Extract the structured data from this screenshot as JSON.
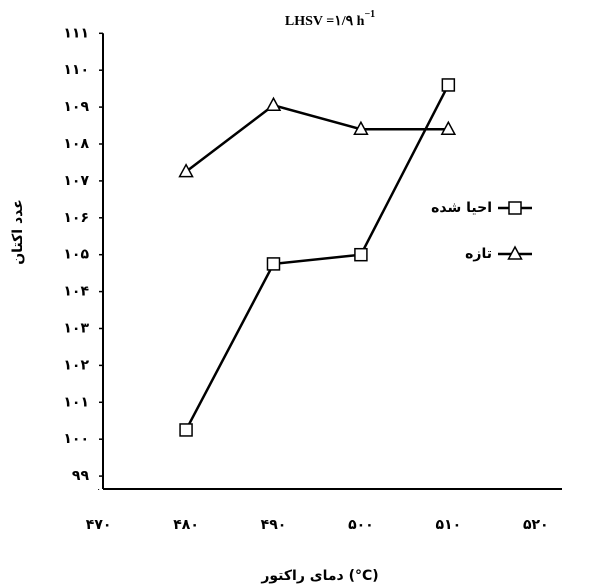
{
  "chart_data": {
    "type": "line",
    "title": "LHSV =۱/۹ h",
    "title_superscript": "−1",
    "x_label": "دمای راکتور (°C)",
    "y_label": "عدد اکتان",
    "x": [
      480,
      490,
      500,
      510
    ],
    "series": [
      {
        "name": "احیا شده",
        "marker": "square",
        "color": "#000000",
        "values": [
          100.25,
          104.75,
          105,
          109.6
        ]
      },
      {
        "name": "تازه",
        "marker": "triangle",
        "color": "#000000",
        "values": [
          107.25,
          109.05,
          108.4,
          108.4
        ]
      }
    ],
    "xlim": [
      470.5,
      523
    ],
    "ylim": [
      98.65,
      111
    ],
    "xticks": [
      {
        "value": 470,
        "label": "۴۷۰"
      },
      {
        "value": 480,
        "label": "۴۸۰"
      },
      {
        "value": 490,
        "label": "۴۹۰"
      },
      {
        "value": 500,
        "label": "۵۰۰"
      },
      {
        "value": 510,
        "label": "۵۱۰"
      },
      {
        "value": 520,
        "label": "۵۲۰"
      }
    ],
    "yticks": [
      {
        "value": 99,
        "label": "۹۹"
      },
      {
        "value": 100,
        "label": "۱۰۰"
      },
      {
        "value": 101,
        "label": "۱۰۱"
      },
      {
        "value": 102,
        "label": "۱۰۲"
      },
      {
        "value": 103,
        "label": "۱۰۳"
      },
      {
        "value": 104,
        "label": "۱۰۴"
      },
      {
        "value": 105,
        "label": "۱۰۵"
      },
      {
        "value": 106,
        "label": "۱۰۶"
      },
      {
        "value": 107,
        "label": "۱۰۷"
      },
      {
        "value": 108,
        "label": "۱۰۸"
      },
      {
        "value": 109,
        "label": "۱۰۹"
      },
      {
        "value": 110,
        "label": "۱۱۰"
      },
      {
        "value": 111,
        "label": "۱۱۱"
      }
    ],
    "legend": "right",
    "grid": false
  }
}
